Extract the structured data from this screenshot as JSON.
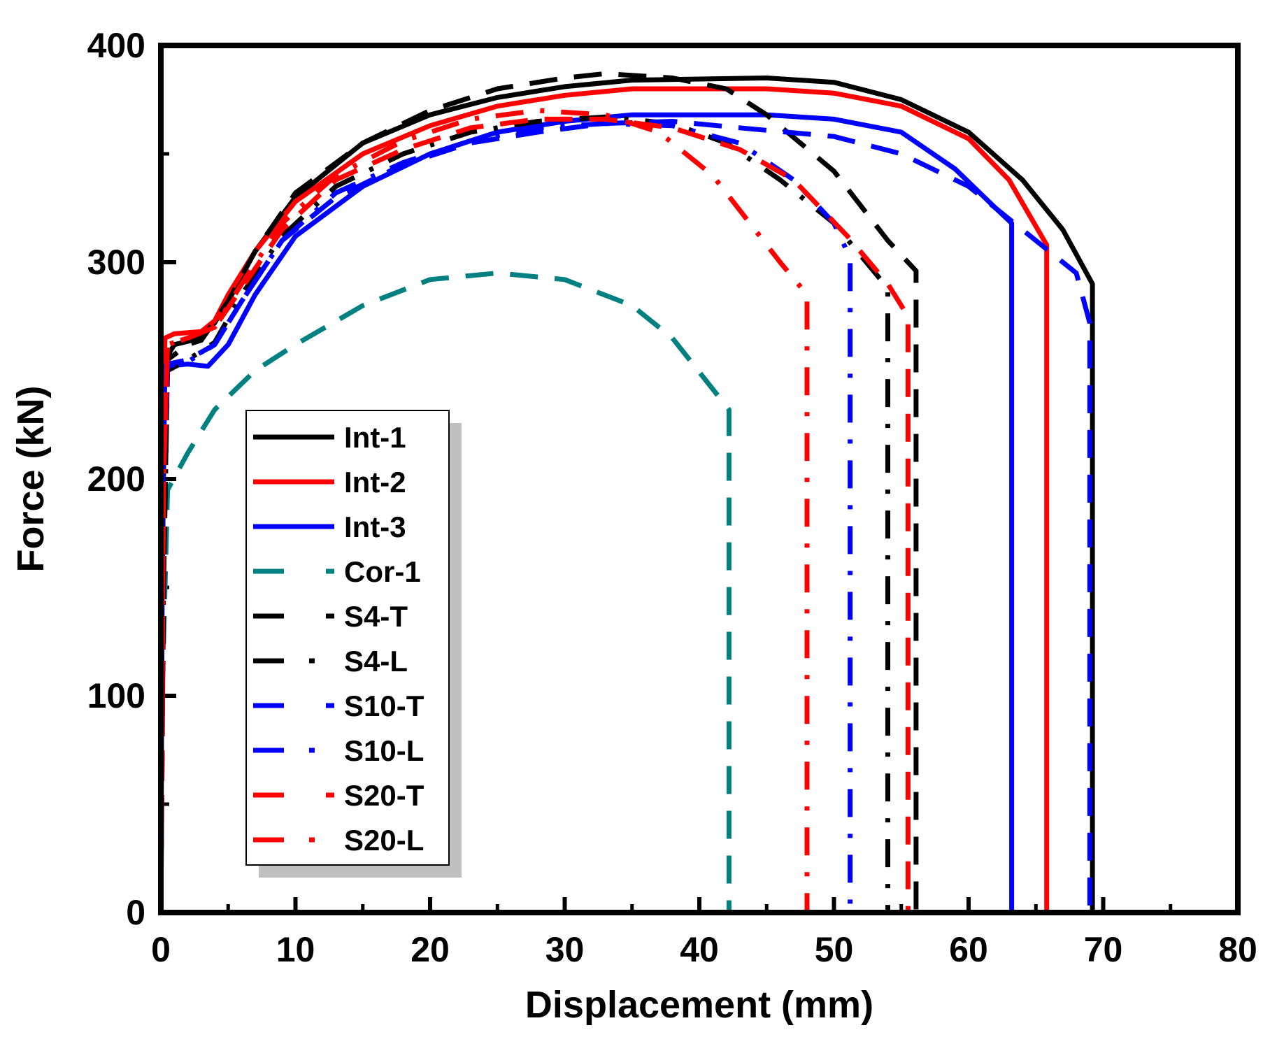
{
  "chart_data": {
    "type": "line",
    "title": "",
    "xlabel": "Displacement (mm)",
    "ylabel": "Force (kN)",
    "xlim": [
      0,
      80
    ],
    "ylim": [
      0,
      400
    ],
    "xticks": [
      "0",
      "10",
      "20",
      "30",
      "40",
      "50",
      "60",
      "70",
      "80"
    ],
    "yticks": [
      "0",
      "100",
      "200",
      "300",
      "400"
    ],
    "grid": false,
    "legend_position": "center-left",
    "series": [
      {
        "name": "Int-1",
        "color": "#000000",
        "dash": "solid",
        "points": [
          [
            0,
            0
          ],
          [
            0.1,
            150
          ],
          [
            0.3,
            255
          ],
          [
            1,
            262
          ],
          [
            3,
            265
          ],
          [
            4,
            272
          ],
          [
            5,
            283
          ],
          [
            7,
            305
          ],
          [
            10,
            330
          ],
          [
            15,
            355
          ],
          [
            20,
            368
          ],
          [
            25,
            376
          ],
          [
            30,
            381
          ],
          [
            35,
            384
          ],
          [
            45,
            385
          ],
          [
            50,
            383
          ],
          [
            55,
            375
          ],
          [
            60,
            360
          ],
          [
            64,
            338
          ],
          [
            67,
            315
          ],
          [
            69.2,
            290
          ],
          [
            69.2,
            0
          ]
        ]
      },
      {
        "name": "Int-2",
        "color": "#ff0000",
        "dash": "solid",
        "points": [
          [
            0,
            0
          ],
          [
            0.1,
            200
          ],
          [
            0.3,
            265
          ],
          [
            1,
            267
          ],
          [
            3,
            268
          ],
          [
            4,
            273
          ],
          [
            5,
            285
          ],
          [
            7,
            305
          ],
          [
            10,
            328
          ],
          [
            15,
            350
          ],
          [
            20,
            363
          ],
          [
            25,
            372
          ],
          [
            30,
            377
          ],
          [
            35,
            380
          ],
          [
            45,
            380
          ],
          [
            50,
            378
          ],
          [
            55,
            372
          ],
          [
            60,
            357
          ],
          [
            63,
            338
          ],
          [
            65.8,
            308
          ],
          [
            65.8,
            0
          ]
        ]
      },
      {
        "name": "Int-3",
        "color": "#0000ff",
        "dash": "solid",
        "points": [
          [
            0,
            0
          ],
          [
            0.1,
            180
          ],
          [
            0.3,
            252
          ],
          [
            2,
            253
          ],
          [
            3.5,
            252
          ],
          [
            5,
            262
          ],
          [
            7,
            285
          ],
          [
            10,
            312
          ],
          [
            15,
            335
          ],
          [
            20,
            350
          ],
          [
            25,
            360
          ],
          [
            30,
            365
          ],
          [
            35,
            368
          ],
          [
            45,
            368
          ],
          [
            50,
            366
          ],
          [
            55,
            360
          ],
          [
            59,
            343
          ],
          [
            62,
            325
          ],
          [
            63.2,
            318
          ],
          [
            63.2,
            0
          ]
        ]
      },
      {
        "name": "Cor-1",
        "color": "#008080",
        "dash": "dashed",
        "points": [
          [
            0,
            0
          ],
          [
            0.1,
            100
          ],
          [
            0.5,
            195
          ],
          [
            2,
            212
          ],
          [
            4,
            232
          ],
          [
            7,
            250
          ],
          [
            10,
            262
          ],
          [
            15,
            280
          ],
          [
            20,
            292
          ],
          [
            25,
            295
          ],
          [
            30,
            292
          ],
          [
            35,
            280
          ],
          [
            38,
            265
          ],
          [
            42.2,
            232
          ],
          [
            42.2,
            0
          ]
        ]
      },
      {
        "name": "S4-T",
        "color": "#000000",
        "dash": "dashed",
        "points": [
          [
            0,
            0
          ],
          [
            0.2,
            150
          ],
          [
            0.5,
            255
          ],
          [
            2,
            262
          ],
          [
            3,
            264
          ],
          [
            5,
            282
          ],
          [
            7,
            305
          ],
          [
            10,
            332
          ],
          [
            15,
            355
          ],
          [
            20,
            370
          ],
          [
            25,
            380
          ],
          [
            30,
            385
          ],
          [
            33,
            387
          ],
          [
            38,
            385
          ],
          [
            42,
            380
          ],
          [
            45,
            368
          ],
          [
            50,
            342
          ],
          [
            54,
            310
          ],
          [
            56.1,
            296
          ],
          [
            56.1,
            0
          ]
        ]
      },
      {
        "name": "S4-L",
        "color": "#000000",
        "dash": "dashdot",
        "points": [
          [
            0,
            0
          ],
          [
            0.2,
            150
          ],
          [
            0.5,
            250
          ],
          [
            2,
            255
          ],
          [
            4,
            263
          ],
          [
            6,
            285
          ],
          [
            9,
            312
          ],
          [
            13,
            335
          ],
          [
            18,
            350
          ],
          [
            23,
            360
          ],
          [
            28,
            365
          ],
          [
            33,
            367
          ],
          [
            38,
            364
          ],
          [
            42,
            355
          ],
          [
            46,
            338
          ],
          [
            50,
            318
          ],
          [
            54,
            288
          ],
          [
            54,
            0
          ]
        ]
      },
      {
        "name": "S10-T",
        "color": "#0000ff",
        "dash": "dashed",
        "points": [
          [
            0,
            0
          ],
          [
            0.2,
            200
          ],
          [
            0.5,
            253
          ],
          [
            2,
            255
          ],
          [
            4,
            262
          ],
          [
            6,
            282
          ],
          [
            9,
            310
          ],
          [
            13,
            330
          ],
          [
            18,
            345
          ],
          [
            23,
            355
          ],
          [
            28,
            360
          ],
          [
            33,
            364
          ],
          [
            38,
            365
          ],
          [
            43,
            362
          ],
          [
            50,
            358
          ],
          [
            55,
            350
          ],
          [
            60,
            335
          ],
          [
            64,
            315
          ],
          [
            68,
            295
          ],
          [
            69,
            272
          ],
          [
            69,
            0
          ]
        ]
      },
      {
        "name": "S10-L",
        "color": "#0000ff",
        "dash": "dashdot",
        "points": [
          [
            0,
            0
          ],
          [
            0.2,
            200
          ],
          [
            0.5,
            252
          ],
          [
            2,
            254
          ],
          [
            4,
            262
          ],
          [
            6,
            282
          ],
          [
            9,
            310
          ],
          [
            13,
            332
          ],
          [
            18,
            346
          ],
          [
            23,
            356
          ],
          [
            28,
            362
          ],
          [
            33,
            364
          ],
          [
            38,
            363
          ],
          [
            43,
            355
          ],
          [
            47,
            338
          ],
          [
            50,
            318
          ],
          [
            51.2,
            302
          ],
          [
            51.2,
            0
          ]
        ]
      },
      {
        "name": "S20-T",
        "color": "#ff0000",
        "dash": "dashed",
        "points": [
          [
            0,
            0
          ],
          [
            0.2,
            200
          ],
          [
            0.5,
            262
          ],
          [
            2,
            265
          ],
          [
            4,
            270
          ],
          [
            6,
            288
          ],
          [
            9,
            315
          ],
          [
            13,
            338
          ],
          [
            18,
            352
          ],
          [
            23,
            362
          ],
          [
            28,
            366
          ],
          [
            33,
            366
          ],
          [
            38,
            362
          ],
          [
            43,
            352
          ],
          [
            47,
            338
          ],
          [
            51,
            312
          ],
          [
            54,
            290
          ],
          [
            55.5,
            275
          ],
          [
            55.5,
            0
          ]
        ]
      },
      {
        "name": "S20-L",
        "color": "#ff0000",
        "dash": "dashdot",
        "points": [
          [
            0,
            0
          ],
          [
            0.2,
            200
          ],
          [
            0.5,
            262
          ],
          [
            2,
            265
          ],
          [
            4,
            270
          ],
          [
            6,
            290
          ],
          [
            9,
            318
          ],
          [
            13,
            340
          ],
          [
            18,
            356
          ],
          [
            23,
            366
          ],
          [
            28,
            370
          ],
          [
            33,
            368
          ],
          [
            37,
            360
          ],
          [
            41,
            340
          ],
          [
            44,
            316
          ],
          [
            46,
            300
          ],
          [
            48,
            285
          ],
          [
            48,
            0
          ]
        ]
      }
    ]
  }
}
